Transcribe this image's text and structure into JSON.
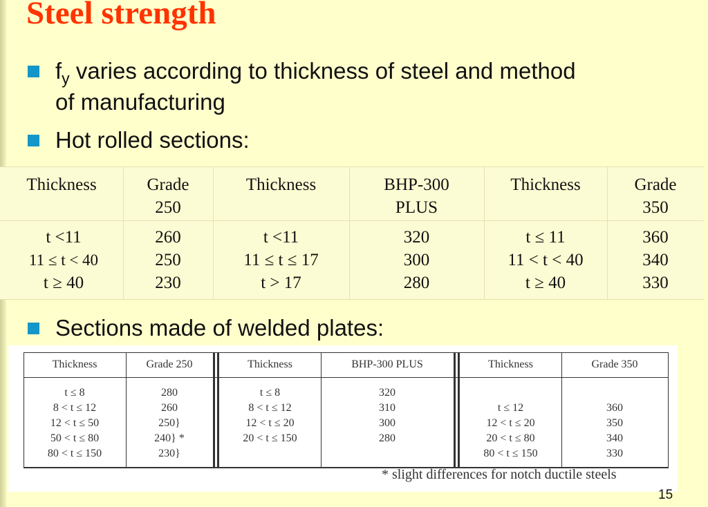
{
  "title": "Steel strength",
  "bullets": {
    "b1_prefix": "f",
    "b1_sub": "y",
    "b1_line1": " varies according to thickness of steel and method",
    "b1_line2": "of manufacturing",
    "b2": "Hot rolled sections:",
    "b3": "Sections made of welded plates:"
  },
  "hot_rolled": {
    "headers": [
      [
        "Thickness"
      ],
      [
        "Grade",
        "250"
      ],
      [
        "Thickness"
      ],
      [
        "BHP-300",
        "PLUS"
      ],
      [
        "Thickness"
      ],
      [
        "Grade",
        "350"
      ]
    ],
    "columns": [
      [
        "t <11",
        "11 ≤  t < 40",
        "t ≥ 40"
      ],
      [
        "260",
        "250",
        "230"
      ],
      [
        "t <11",
        "11 ≤  t ≤ 17",
        "t  > 17"
      ],
      [
        "320",
        "300",
        "280"
      ],
      [
        "t ≤ 11",
        "11 <  t < 40",
        "t ≥ 40"
      ],
      [
        "360",
        "340",
        "330"
      ]
    ]
  },
  "welded": {
    "headers": [
      "Thickness",
      "Grade 250",
      "Thickness",
      "BHP-300 PLUS",
      "Thickness",
      "Grade 350"
    ],
    "columns": [
      [
        "t ≤ 8",
        "8 < t ≤ 12",
        "12 < t ≤ 50",
        "50 < t ≤ 80",
        "80 < t ≤ 150"
      ],
      [
        "280",
        "260",
        "250}",
        "240}  *",
        "230}"
      ],
      [
        "t ≤ 8",
        "8 < t ≤ 12",
        "12 < t ≤ 20",
        "20 < t ≤ 150"
      ],
      [
        "320",
        "310",
        "300",
        "280"
      ],
      [
        "",
        "t  ≤ 12",
        "12 < t ≤ 20",
        "20 < t ≤ 80",
        "80 < t ≤ 150"
      ],
      [
        "",
        "360",
        "350",
        "340",
        "330"
      ]
    ],
    "footnote": "* slight differences for notch ductile steels"
  },
  "page_number": "15",
  "colors": {
    "title": "#ff3300",
    "bullet": "#1496c8",
    "background": "#ffffcc"
  }
}
